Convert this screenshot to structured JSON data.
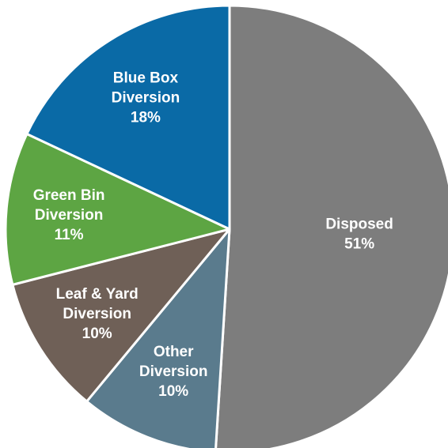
{
  "chart_data": {
    "type": "pie",
    "start_angle_deg": 0,
    "direction": "clockwise",
    "slices": [
      {
        "label": "Disposed",
        "value": 51,
        "value_label": "51%",
        "color": "#7d7d7d"
      },
      {
        "label": "Other Diversion",
        "value": 10,
        "value_label": "10%",
        "color": "#5a7b8d"
      },
      {
        "label": "Leaf & Yard Diversion",
        "value": 10,
        "value_label": "10%",
        "color": "#6f6057"
      },
      {
        "label": "Green Bin Diversion",
        "value": 11,
        "value_label": "11%",
        "color": "#5da543"
      },
      {
        "label": "Blue Box Diversion",
        "value": 18,
        "value_label": "18%",
        "color": "#0a6aa6"
      }
    ]
  }
}
